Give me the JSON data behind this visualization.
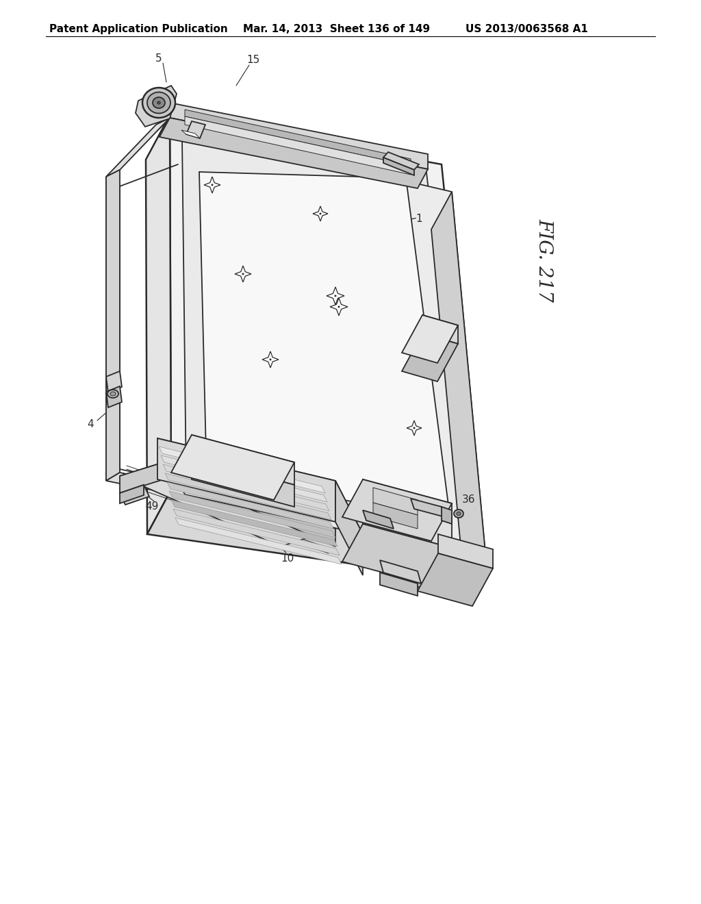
{
  "header_left": "Patent Application Publication",
  "header_middle": "Mar. 14, 2013  Sheet 136 of 149",
  "header_right": "US 2013/0063568 A1",
  "fig_label": "FIG. 217",
  "background_color": "#ffffff",
  "line_color": "#2a2a2a",
  "header_font_size": 11,
  "fig_label_font_size": 20,
  "lw_main": 1.3,
  "lw_thick": 1.8,
  "lw_thin": 0.7
}
